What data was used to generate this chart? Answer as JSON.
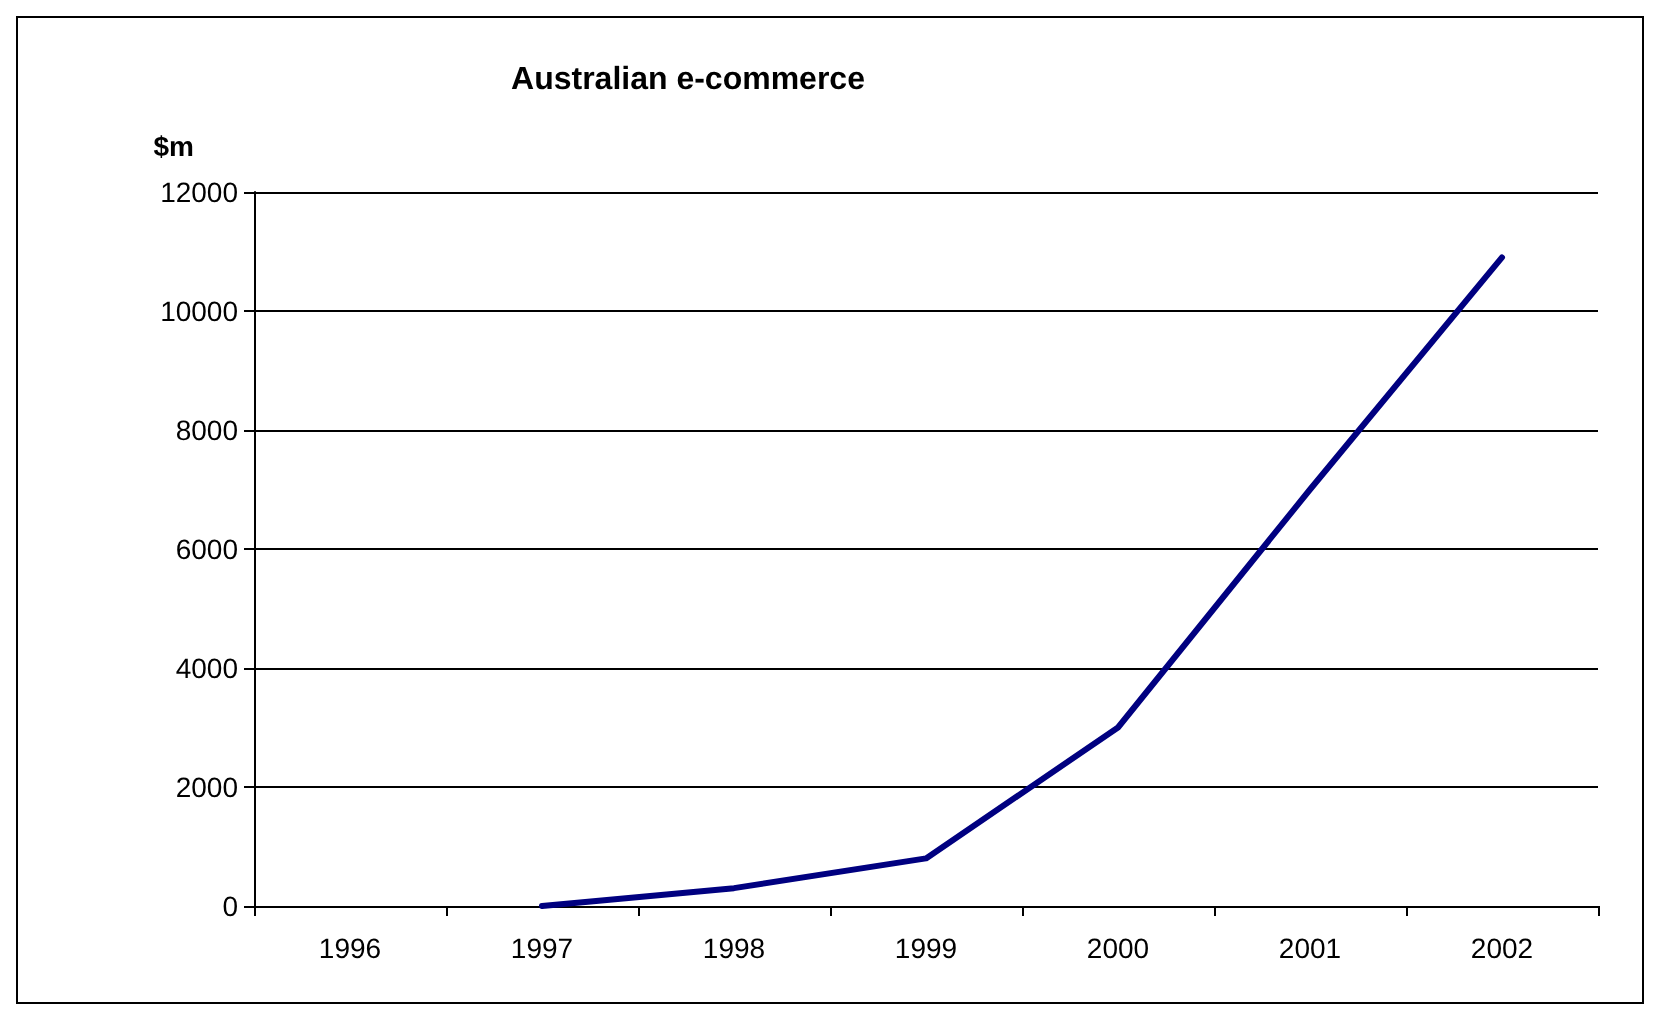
{
  "chart_data": {
    "type": "line",
    "title": "Australian e-commerce",
    "ylabel": "$m",
    "categories": [
      "1996",
      "1997",
      "1998",
      "1999",
      "2000",
      "2001",
      "2002"
    ],
    "series": [
      {
        "color": "#000080",
        "values": [
          null,
          0,
          300,
          800,
          3000,
          7000,
          10900
        ]
      }
    ],
    "ylim": [
      0,
      12000
    ],
    "yticks": [
      0,
      2000,
      4000,
      6000,
      8000,
      10000,
      12000
    ],
    "grid": "y",
    "marker": "none",
    "line_style": "solid"
  }
}
